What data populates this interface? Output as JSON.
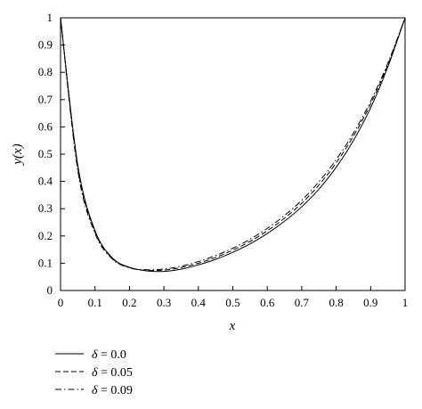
{
  "chart_data": {
    "type": "line",
    "xlabel": "x",
    "ylabel": "y(x)",
    "xlim": [
      0,
      1
    ],
    "ylim": [
      0,
      1
    ],
    "x_ticks": [
      "0",
      "0.1",
      "0.2",
      "0.3",
      "0.4",
      "0.5",
      "0.6",
      "0.7",
      "0.8",
      "0.9",
      "1"
    ],
    "y_ticks": [
      "0",
      "0.1",
      "0.2",
      "0.3",
      "0.4",
      "0.5",
      "0.6",
      "0.7",
      "0.8",
      "0.9",
      "1"
    ],
    "grid": false,
    "legend_position": "bottom-left, below plot",
    "x": [
      0,
      0.05,
      0.1,
      0.15,
      0.2,
      0.25,
      0.3,
      0.35,
      0.4,
      0.45,
      0.5,
      0.55,
      0.6,
      0.65,
      0.7,
      0.75,
      0.8,
      0.85,
      0.9,
      0.95,
      1
    ],
    "series": [
      {
        "name": "δ = 0.0",
        "symbol": "δ",
        "rest": " = 0.0",
        "style": "solid",
        "values": [
          1.0,
          0.46,
          0.22,
          0.12,
          0.085,
          0.072,
          0.07,
          0.078,
          0.094,
          0.114,
          0.14,
          0.171,
          0.209,
          0.254,
          0.307,
          0.372,
          0.452,
          0.55,
          0.67,
          0.82,
          1.0
        ]
      },
      {
        "name": "δ = 0.05",
        "symbol": "δ",
        "rest": " = 0.05",
        "style": "dashed",
        "values": [
          1.0,
          0.45,
          0.215,
          0.118,
          0.084,
          0.074,
          0.075,
          0.084,
          0.1,
          0.121,
          0.148,
          0.18,
          0.219,
          0.265,
          0.32,
          0.387,
          0.468,
          0.566,
          0.684,
          0.828,
          1.0
        ]
      },
      {
        "name": "δ = 0.09",
        "symbol": "δ",
        "rest": " = 0.09",
        "style": "dashdot",
        "values": [
          1.0,
          0.44,
          0.21,
          0.116,
          0.083,
          0.076,
          0.079,
          0.089,
          0.106,
          0.128,
          0.155,
          0.188,
          0.228,
          0.275,
          0.331,
          0.399,
          0.48,
          0.577,
          0.694,
          0.834,
          1.0
        ]
      }
    ]
  },
  "colors": {
    "line": "#000000",
    "background": "#ffffff"
  }
}
